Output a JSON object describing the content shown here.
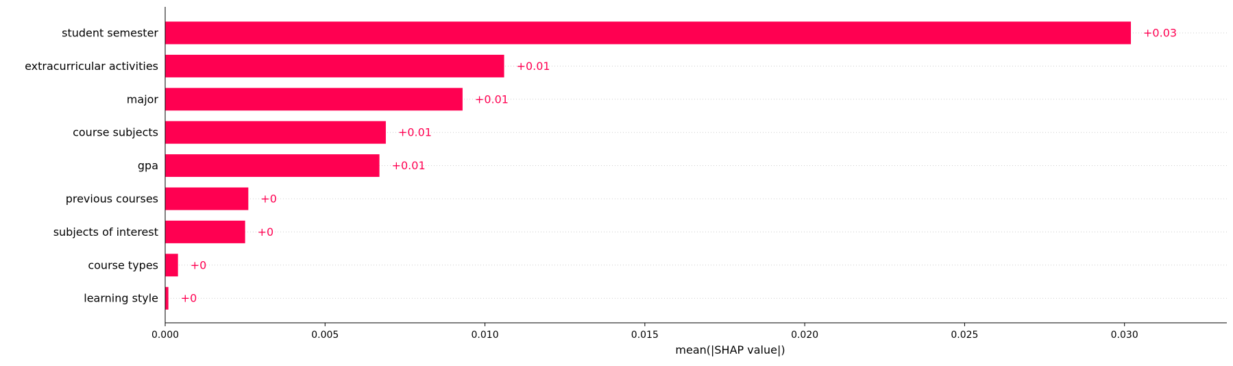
{
  "chart_data": {
    "type": "bar",
    "orientation": "horizontal",
    "title": "",
    "xlabel": "mean(|SHAP value|)",
    "ylabel": "",
    "xlim": [
      0,
      0.0332
    ],
    "grid": false,
    "categories": [
      "student semester",
      "extracurricular activities",
      "major",
      "course subjects",
      "gpa",
      "previous courses",
      "subjects of interest",
      "course types",
      "learning style"
    ],
    "values": [
      0.0302,
      0.0106,
      0.0093,
      0.0069,
      0.0067,
      0.0026,
      0.0025,
      0.0004,
      0.0001
    ],
    "value_labels": [
      "+0.03",
      "+0.01",
      "+0.01",
      "+0.01",
      "+0.01",
      "+0",
      "+0",
      "+0",
      "+0"
    ],
    "x_ticks": [
      0,
      0.005,
      0.01,
      0.015,
      0.02,
      0.025,
      0.03
    ],
    "x_tick_labels": [
      "0.000",
      "0.005",
      "0.010",
      "0.015",
      "0.020",
      "0.025",
      "0.030"
    ],
    "colors": {
      "bar": "#ff0051",
      "value_label": "#ff0051",
      "axis": "#000000",
      "guide_line": "#cccccc"
    }
  }
}
